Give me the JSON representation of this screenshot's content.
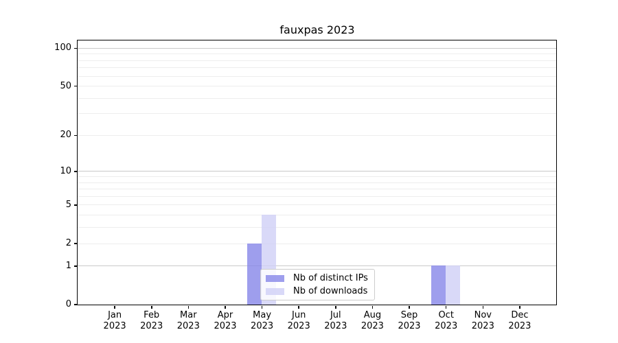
{
  "chart_data": {
    "type": "bar",
    "title": "fauxpas 2023",
    "xlabel": "",
    "ylabel": "",
    "months": [
      "Jan",
      "Feb",
      "Mar",
      "Apr",
      "May",
      "Jun",
      "Jul",
      "Aug",
      "Sep",
      "Oct",
      "Nov",
      "Dec"
    ],
    "year": "2023",
    "series": [
      {
        "name": "Nb of distinct IPs",
        "key": "distinct-ips",
        "color": "rgba(134,134,232,0.8)",
        "values": [
          0,
          0,
          0,
          0,
          2,
          0,
          0,
          0,
          0,
          1,
          0,
          0
        ]
      },
      {
        "name": "Nb of downloads",
        "key": "downloads",
        "color": "rgba(208,208,246,0.8)",
        "values": [
          0,
          0,
          0,
          0,
          4,
          0,
          0,
          0,
          0,
          1,
          0,
          0
        ]
      }
    ],
    "y_ticks": [
      0,
      1,
      2,
      5,
      10,
      20,
      50,
      100
    ],
    "y_scale": "log1p",
    "ylim": [
      0,
      115
    ],
    "grid": {
      "major": [
        1,
        10,
        100
      ],
      "minor": [
        2,
        3,
        4,
        5,
        6,
        7,
        8,
        9,
        20,
        30,
        40,
        50,
        60,
        70,
        80,
        90
      ]
    },
    "legend_position": "lower center"
  },
  "colors": {
    "bar_distinct_ips_rendered": "#9f9fed",
    "bar_downloads_rendered": "#d9d9f7",
    "grid_major": "#c9c9c9",
    "grid_minor": "#ededed",
    "spine": "#000000",
    "legend_border": "#cccccc",
    "background": "#ffffff"
  }
}
